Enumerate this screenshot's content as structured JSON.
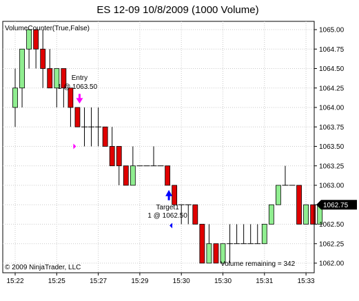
{
  "chart_data": {
    "type": "candlestick",
    "title": "ES 12-09  10/8/2009 (1000 Volume)",
    "indicator_label": "VolumeCounter(True,False)",
    "copyright": "© 2009 NinjaTrader, LLC",
    "volume_remaining": "Volume remaining = 342",
    "last_price_label": "1062.75",
    "ylim": [
      1061.97,
      1065.06
    ],
    "y_ticks": [
      {
        "value": 1065.0,
        "label": "1065.00"
      },
      {
        "value": 1064.75,
        "label": "1064.75"
      },
      {
        "value": 1064.5,
        "label": "1064.50"
      },
      {
        "value": 1064.25,
        "label": "1064.25"
      },
      {
        "value": 1064.0,
        "label": "1064.00"
      },
      {
        "value": 1063.75,
        "label": "1063.75"
      },
      {
        "value": 1063.5,
        "label": "1063.50"
      },
      {
        "value": 1063.25,
        "label": "1063.25"
      },
      {
        "value": 1063.0,
        "label": "1063.00"
      },
      {
        "value": 1062.75,
        "label": "1062.75"
      },
      {
        "value": 1062.5,
        "label": "1062.50"
      },
      {
        "value": 1062.25,
        "label": "1062.25"
      },
      {
        "value": 1062.0,
        "label": "1062.00"
      }
    ],
    "x_ticks": [
      {
        "bar": 0,
        "label": "15:22"
      },
      {
        "bar": 6,
        "label": "15:25"
      },
      {
        "bar": 12,
        "label": "15:27"
      },
      {
        "bar": 18,
        "label": "15:29"
      },
      {
        "bar": 24,
        "label": "15:30"
      },
      {
        "bar": 30,
        "label": "15:30"
      },
      {
        "bar": 36,
        "label": "15:31"
      },
      {
        "bar": 42,
        "label": "15:33"
      }
    ],
    "colors": {
      "up": "#90EE90",
      "down": "#E00000",
      "doji": "#000000",
      "entry_marker": "#FF00FF",
      "target_marker": "#0000FF",
      "price_box": "#000000"
    },
    "candles": [
      {
        "o": 1064.0,
        "h": 1064.5,
        "l": 1063.75,
        "c": 1064.25
      },
      {
        "o": 1064.25,
        "h": 1064.75,
        "l": 1064.0,
        "c": 1064.75
      },
      {
        "o": 1064.75,
        "h": 1065.0,
        "l": 1064.5,
        "c": 1065.0
      },
      {
        "o": 1065.0,
        "h": 1065.0,
        "l": 1064.5,
        "c": 1064.75
      },
      {
        "o": 1064.75,
        "h": 1065.0,
        "l": 1064.25,
        "c": 1064.5
      },
      {
        "o": 1064.5,
        "h": 1064.75,
        "l": 1064.25,
        "c": 1064.25
      },
      {
        "o": 1064.25,
        "h": 1064.5,
        "l": 1064.0,
        "c": 1064.5
      },
      {
        "o": 1064.5,
        "h": 1064.5,
        "l": 1064.0,
        "c": 1064.25
      },
      {
        "o": 1064.25,
        "h": 1064.25,
        "l": 1063.75,
        "c": 1064.0
      },
      {
        "o": 1064.0,
        "h": 1064.0,
        "l": 1063.75,
        "c": 1063.75
      },
      {
        "o": 1063.75,
        "h": 1064.0,
        "l": 1063.5,
        "c": 1063.75
      },
      {
        "o": 1063.75,
        "h": 1064.0,
        "l": 1063.5,
        "c": 1063.75
      },
      {
        "o": 1063.75,
        "h": 1064.0,
        "l": 1063.5,
        "c": 1063.75
      },
      {
        "o": 1063.75,
        "h": 1063.75,
        "l": 1063.5,
        "c": 1063.5
      },
      {
        "o": 1063.5,
        "h": 1063.75,
        "l": 1063.25,
        "c": 1063.25
      },
      {
        "o": 1063.5,
        "h": 1063.5,
        "l": 1063.0,
        "c": 1063.25
      },
      {
        "o": 1063.25,
        "h": 1063.25,
        "l": 1063.0,
        "c": 1063.0
      },
      {
        "o": 1063.0,
        "h": 1063.5,
        "l": 1063.0,
        "c": 1063.25
      },
      {
        "o": 1063.25,
        "h": 1063.25,
        "l": 1063.25,
        "c": 1063.25
      },
      {
        "o": 1063.25,
        "h": 1063.25,
        "l": 1063.25,
        "c": 1063.25
      },
      {
        "o": 1063.25,
        "h": 1063.5,
        "l": 1063.25,
        "c": 1063.25
      },
      {
        "o": 1063.25,
        "h": 1063.25,
        "l": 1063.25,
        "c": 1063.25
      },
      {
        "o": 1063.25,
        "h": 1063.25,
        "l": 1063.0,
        "c": 1063.0
      },
      {
        "o": 1063.0,
        "h": 1063.0,
        "l": 1062.75,
        "c": 1062.75
      },
      {
        "o": 1062.75,
        "h": 1062.75,
        "l": 1062.5,
        "c": 1062.75
      },
      {
        "o": 1062.75,
        "h": 1062.75,
        "l": 1062.5,
        "c": 1062.75
      },
      {
        "o": 1062.75,
        "h": 1062.75,
        "l": 1062.5,
        "c": 1062.5
      },
      {
        "o": 1062.5,
        "h": 1062.5,
        "l": 1062.0,
        "c": 1062.0
      },
      {
        "o": 1062.0,
        "h": 1062.5,
        "l": 1062.0,
        "c": 1062.25
      },
      {
        "o": 1062.25,
        "h": 1062.25,
        "l": 1062.0,
        "c": 1062.0
      },
      {
        "o": 1062.0,
        "h": 1062.25,
        "l": 1062.0,
        "c": 1062.25
      },
      {
        "o": 1062.25,
        "h": 1062.5,
        "l": 1062.0,
        "c": 1062.25
      },
      {
        "o": 1062.25,
        "h": 1062.5,
        "l": 1062.25,
        "c": 1062.25
      },
      {
        "o": 1062.25,
        "h": 1062.5,
        "l": 1062.25,
        "c": 1062.25
      },
      {
        "o": 1062.25,
        "h": 1062.5,
        "l": 1062.25,
        "c": 1062.25
      },
      {
        "o": 1062.25,
        "h": 1062.5,
        "l": 1062.25,
        "c": 1062.25
      },
      {
        "o": 1062.25,
        "h": 1062.5,
        "l": 1062.25,
        "c": 1062.5
      },
      {
        "o": 1062.5,
        "h": 1062.75,
        "l": 1062.5,
        "c": 1062.75
      },
      {
        "o": 1062.75,
        "h": 1063.0,
        "l": 1062.75,
        "c": 1063.0
      },
      {
        "o": 1063.0,
        "h": 1063.25,
        "l": 1063.0,
        "c": 1063.0
      },
      {
        "o": 1063.0,
        "h": 1063.0,
        "l": 1063.0,
        "c": 1063.0
      },
      {
        "o": 1063.0,
        "h": 1063.0,
        "l": 1062.5,
        "c": 1062.5
      },
      {
        "o": 1062.5,
        "h": 1062.75,
        "l": 1062.5,
        "c": 1062.75
      },
      {
        "o": 1062.75,
        "h": 1062.75,
        "l": 1062.5,
        "c": 1062.5
      },
      {
        "o": 1062.5,
        "h": 1062.75,
        "l": 1062.5,
        "c": 1062.75
      }
    ],
    "annotations": [
      {
        "name": "entry",
        "bar": 9,
        "label_line1": "Entry",
        "label_line2": "1 @ 1063.50",
        "arrow": "down",
        "arrow_price": 1064.05,
        "fill_bar": 9,
        "fill_price": 1063.5
      },
      {
        "name": "target",
        "bar": 22,
        "label_line1": "Target1",
        "label_line2": "1 @ 1062.50",
        "arrow": "up",
        "arrow_price": 1062.87,
        "fill_bar": 21,
        "fill_price": 1062.5
      }
    ]
  }
}
